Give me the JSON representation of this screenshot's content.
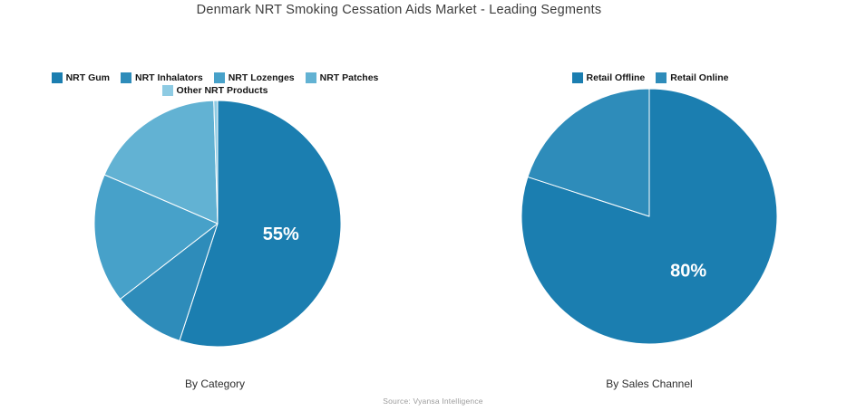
{
  "title": "Denmark NRT Smoking Cessation Aids Market - Leading Segments",
  "source": "Source: Vyansa Intelligence",
  "palette": {
    "shade1": "#1b7eb0",
    "shade2": "#2e8cba",
    "shade3": "#47a1c9",
    "shade4": "#62b2d3",
    "shade5": "#8ecbe3"
  },
  "chart_data": [
    {
      "type": "pie",
      "title": "By Category",
      "labels": [
        "NRT Gum",
        "NRT Inhalators",
        "NRT Lozenges",
        "NRT Patches",
        "Other NRT Products"
      ],
      "values": [
        55,
        9.5,
        17,
        18,
        0.5
      ],
      "colors": [
        "#1b7eb0",
        "#2e8cba",
        "#47a1c9",
        "#62b2d3",
        "#8ecbe3"
      ],
      "value_labels": [
        "55%",
        "",
        "",
        "",
        ""
      ],
      "start_angle_deg": 0,
      "direction": "clockwise",
      "legend_position": "top",
      "note": "Only the 55% slice is labeled in the figure; remaining values estimated from slice angles."
    },
    {
      "type": "pie",
      "title": "By Sales Channel",
      "labels": [
        "Retail Offline",
        "Retail Online"
      ],
      "values": [
        80,
        20
      ],
      "colors": [
        "#1b7eb0",
        "#2e8cba"
      ],
      "value_labels": [
        "80%",
        ""
      ],
      "start_angle_deg": 0,
      "direction": "clockwise",
      "legend_position": "top",
      "note": "Only the 80% slice is labeled in the figure."
    }
  ]
}
